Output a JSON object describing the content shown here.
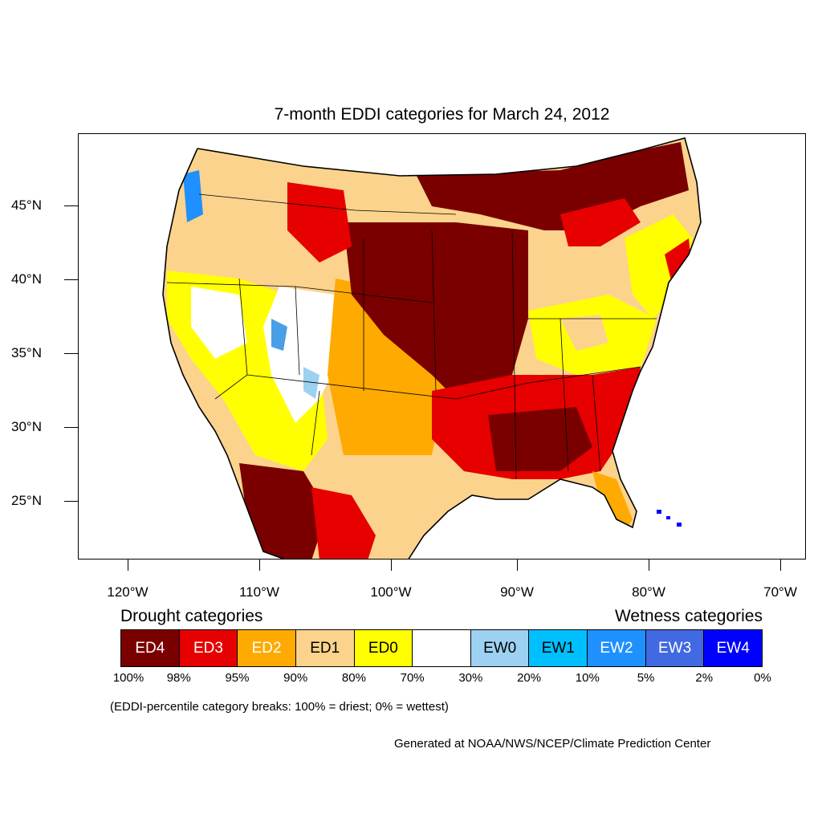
{
  "title": "7-month EDDI categories for March 24, 2012",
  "map": {
    "latitude_labels": [
      "45°N",
      "40°N",
      "35°N",
      "30°N",
      "25°N"
    ],
    "longitude_labels": [
      "120°W",
      "110°W",
      "100°W",
      "90°W",
      "80°W",
      "70°W"
    ],
    "colors": {
      "ED4": "#7a0000",
      "ED3": "#e60000",
      "ED2": "#ffaa00",
      "ED1": "#fcd38c",
      "ED0": "#ffff00",
      "none": "#ffffff",
      "EW0": "#9dd1f2",
      "EW1": "#00bfff",
      "EW2": "#1e90ff",
      "EW3": "#4169e1",
      "EW4": "#0000ff"
    }
  },
  "legend": {
    "drought_heading": "Drought categories",
    "wetness_heading": "Wetness categories",
    "categories": [
      {
        "label": "ED4",
        "color": "#7a0000",
        "text_color": "#ffffff"
      },
      {
        "label": "ED3",
        "color": "#e60000",
        "text_color": "#ffffff"
      },
      {
        "label": "ED2",
        "color": "#ffaa00",
        "text_color": "#ffffff"
      },
      {
        "label": "ED1",
        "color": "#fcd38c",
        "text_color": "#000000"
      },
      {
        "label": "ED0",
        "color": "#ffff00",
        "text_color": "#000000"
      },
      {
        "label": "",
        "color": "#ffffff",
        "text_color": "#000000"
      },
      {
        "label": "EW0",
        "color": "#9dd1f2",
        "text_color": "#000000"
      },
      {
        "label": "EW1",
        "color": "#00bfff",
        "text_color": "#000000"
      },
      {
        "label": "EW2",
        "color": "#1e90ff",
        "text_color": "#ffffff"
      },
      {
        "label": "EW3",
        "color": "#4169e1",
        "text_color": "#ffffff"
      },
      {
        "label": "EW4",
        "color": "#0000ff",
        "text_color": "#ffffff"
      }
    ],
    "percent_breaks": [
      "100%",
      "98%",
      "95%",
      "90%",
      "80%",
      "70%",
      "30%",
      "20%",
      "10%",
      "5%",
      "2%",
      "0%"
    ],
    "note": "(EDDI-percentile category breaks: 100% = driest; 0% = wettest)"
  },
  "credit": "Generated at NOAA/NWS/NCEP/Climate Prediction Center"
}
